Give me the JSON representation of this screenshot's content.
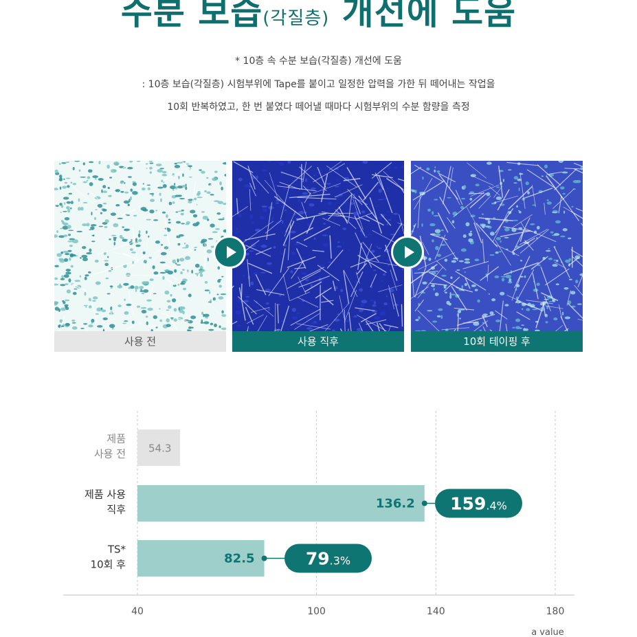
{
  "title": {
    "main_a": "수분 보습",
    "sub": "(각질층)",
    "main_b": "개선에 도움"
  },
  "description": {
    "line1": "* 10층 속 수분 보습(각질층) 개선에 도움",
    "line2": ": 10층 보습(각질층) 시험부위에 Tape를 붙이고 일정한 압력을 가한 뒤 떼어내는 작업을",
    "line3": "10회 반복하였고, 한 번 붙였다 떼어낼 때마다 시험부위의 수분 함량을 측정"
  },
  "panels": [
    {
      "caption": "사용 전",
      "style": "grey",
      "texture": "sparse-teal"
    },
    {
      "caption": "사용 직후",
      "style": "teal",
      "texture": "dense-blue"
    },
    {
      "caption": "10회 테이핑 후",
      "style": "teal",
      "texture": "medium-blue"
    }
  ],
  "icons": {
    "arrow": "play-arrow-icon"
  },
  "colors": {
    "accent": "#0f7572",
    "bar_grey": "#e3e3e3",
    "bar_teal": "#9ecfca",
    "grid": "#c8c8c8"
  },
  "chart_data": {
    "type": "bar",
    "orientation": "horizontal",
    "categories": [
      [
        "제품",
        "사용 전"
      ],
      [
        "제품 사용",
        "직후"
      ],
      [
        "TS*",
        "10회 후"
      ]
    ],
    "values": [
      54.3,
      136.2,
      82.5
    ],
    "value_labels": [
      "54.3",
      "136.2",
      "82.5"
    ],
    "badges": [
      null,
      {
        "major": "159",
        "minor": ".4%"
      },
      {
        "major": "79",
        "minor": ".3%"
      }
    ],
    "xlim": [
      40,
      180
    ],
    "xticks": [
      40,
      100,
      140,
      180
    ],
    "xlabel": "a value",
    "grid": true
  }
}
